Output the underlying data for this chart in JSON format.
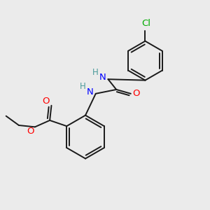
{
  "background_color": "#ebebeb",
  "bond_color": "#1a1a1a",
  "N_color": "#0000ff",
  "H_color": "#4a9a9a",
  "O_color": "#ff0000",
  "Cl_color": "#00aa00",
  "figsize": [
    3.0,
    3.0
  ],
  "dpi": 100,
  "xlim": [
    0,
    10
  ],
  "ylim": [
    0,
    10
  ]
}
